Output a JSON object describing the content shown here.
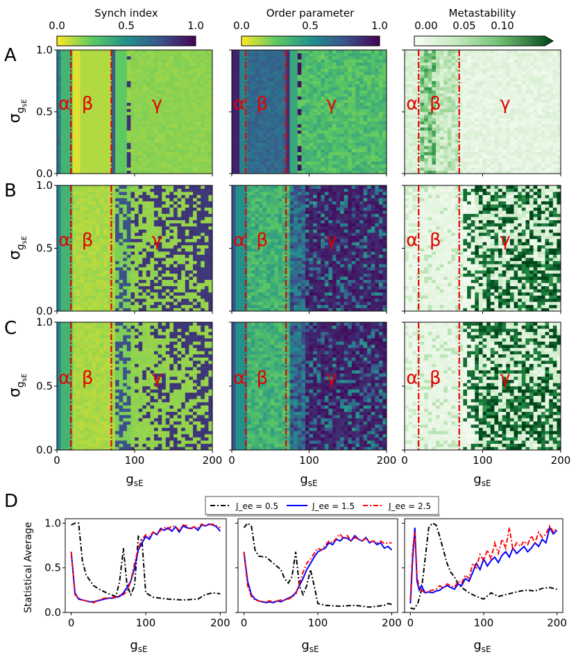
{
  "chart_data": {
    "type": "heatmap",
    "rows": [
      {
        "label": "A"
      },
      {
        "label": "B"
      },
      {
        "label": "C"
      }
    ],
    "columns": [
      {
        "title": "Synch index",
        "colormap": "viridis_r",
        "colorbar_ticks": [
          "0.0",
          "0.5",
          "1.0"
        ],
        "vmin": 0,
        "vmax": 1
      },
      {
        "title": "Order parameter",
        "colormap": "viridis_r",
        "colorbar_ticks": [
          "0.0",
          "0.5",
          "1.0"
        ],
        "vmin": 0,
        "vmax": 1
      },
      {
        "title": "Metastability",
        "colormap": "Greens",
        "colorbar_ticks": [
          "0.00",
          "0.05",
          "0.10"
        ],
        "vmin": 0,
        "vmax": 0.14,
        "colorbar_extend": "max"
      }
    ],
    "xlabel": "g_sE",
    "ylabel": "σ_g_sE",
    "xlim": [
      0,
      200
    ],
    "ylim": [
      0,
      1
    ],
    "x_ticks": [
      "0",
      "100",
      "200"
    ],
    "y_ticks": [
      "0.0",
      "0.5",
      "1.0"
    ],
    "boundaries": [
      18,
      70
    ],
    "band_labels": [
      "α",
      "β",
      "γ"
    ],
    "grid_cols": 40,
    "grid_rows": 40
  },
  "line_chart_data": {
    "type": "line",
    "row_label": "D",
    "ylabel": "Statistical Average",
    "xlabel": "g_sE",
    "xlim": [
      -8,
      208
    ],
    "ylim": [
      0,
      1.05
    ],
    "x_ticks": [
      "0",
      "100",
      "200"
    ],
    "y_ticks": [
      "0.0",
      "0.5",
      "1.0"
    ],
    "legend": [
      {
        "label": "J_ee = 0.5",
        "color": "#000000",
        "style": "dashdot"
      },
      {
        "label": "J_ee = 1.5",
        "color": "#0000ff",
        "style": "solid"
      },
      {
        "label": "J_ee = 2.5",
        "color": "#ff0000",
        "style": "dashdot"
      }
    ],
    "panels": [
      {
        "name": "synch",
        "series": [
          {
            "name": "J_ee = 0.5",
            "x": [
              0,
              5,
              10,
              15,
              20,
              30,
              40,
              50,
              60,
              65,
              70,
              75,
              80,
              85,
              90,
              95,
              100,
              110,
              120,
              130,
              150,
              170,
              180,
              190,
              200
            ],
            "y": [
              0.98,
              1.0,
              1.0,
              0.58,
              0.42,
              0.3,
              0.25,
              0.21,
              0.18,
              0.35,
              0.72,
              0.3,
              0.2,
              0.3,
              0.85,
              0.8,
              0.22,
              0.17,
              0.16,
              0.15,
              0.14,
              0.15,
              0.2,
              0.22,
              0.21
            ]
          },
          {
            "name": "J_ee = 1.5",
            "x": [
              0,
              5,
              10,
              15,
              20,
              25,
              30,
              35,
              40,
              45,
              50,
              55,
              60,
              65,
              70,
              75,
              80,
              85,
              90,
              95,
              100,
              105,
              110,
              115,
              120,
              125,
              130,
              135,
              140,
              145,
              150,
              155,
              160,
              165,
              170,
              175,
              180,
              185,
              190,
              195,
              200
            ],
            "y": [
              0.68,
              0.22,
              0.15,
              0.14,
              0.13,
              0.12,
              0.12,
              0.13,
              0.14,
              0.15,
              0.16,
              0.16,
              0.17,
              0.18,
              0.22,
              0.28,
              0.35,
              0.5,
              0.7,
              0.78,
              0.85,
              0.82,
              0.9,
              0.87,
              0.94,
              0.92,
              0.95,
              0.91,
              0.96,
              0.9,
              0.97,
              0.95,
              0.94,
              0.96,
              0.92,
              0.98,
              0.97,
              0.99,
              0.98,
              0.96,
              0.91
            ]
          },
          {
            "name": "J_ee = 2.5",
            "x": [
              0,
              5,
              10,
              15,
              20,
              25,
              30,
              35,
              40,
              45,
              50,
              55,
              60,
              65,
              70,
              75,
              80,
              85,
              90,
              95,
              100,
              105,
              110,
              115,
              120,
              125,
              130,
              135,
              140,
              145,
              150,
              155,
              160,
              165,
              170,
              175,
              180,
              185,
              190,
              195,
              200
            ],
            "y": [
              0.68,
              0.2,
              0.16,
              0.14,
              0.13,
              0.12,
              0.11,
              0.13,
              0.15,
              0.16,
              0.16,
              0.17,
              0.17,
              0.19,
              0.2,
              0.24,
              0.35,
              0.55,
              0.72,
              0.82,
              0.87,
              0.85,
              0.9,
              0.88,
              0.92,
              0.95,
              0.93,
              0.97,
              0.96,
              0.92,
              0.98,
              0.97,
              0.93,
              0.96,
              0.95,
              0.99,
              0.97,
              0.98,
              0.99,
              0.97,
              0.95
            ]
          }
        ]
      },
      {
        "name": "order",
        "series": [
          {
            "name": "J_ee = 0.5",
            "x": [
              0,
              5,
              10,
              15,
              20,
              30,
              40,
              50,
              55,
              60,
              65,
              70,
              75,
              80,
              85,
              90,
              95,
              100,
              110,
              130,
              150,
              170,
              190,
              195,
              200
            ],
            "y": [
              0.95,
              1.0,
              0.97,
              0.7,
              0.63,
              0.62,
              0.55,
              0.48,
              0.38,
              0.33,
              0.4,
              0.68,
              0.3,
              0.2,
              0.3,
              0.48,
              0.3,
              0.1,
              0.08,
              0.07,
              0.08,
              0.06,
              0.08,
              0.1,
              0.09
            ]
          },
          {
            "name": "J_ee = 1.5",
            "x": [
              0,
              5,
              10,
              15,
              20,
              25,
              30,
              35,
              40,
              45,
              50,
              55,
              60,
              65,
              70,
              75,
              80,
              85,
              90,
              95,
              100,
              105,
              110,
              115,
              120,
              125,
              130,
              135,
              140,
              145,
              150,
              155,
              160,
              165,
              170,
              175,
              180,
              185,
              190,
              195,
              200
            ],
            "y": [
              0.68,
              0.35,
              0.2,
              0.15,
              0.13,
              0.12,
              0.11,
              0.12,
              0.11,
              0.13,
              0.12,
              0.14,
              0.16,
              0.18,
              0.22,
              0.3,
              0.38,
              0.48,
              0.55,
              0.62,
              0.68,
              0.7,
              0.72,
              0.78,
              0.76,
              0.82,
              0.8,
              0.84,
              0.83,
              0.8,
              0.86,
              0.82,
              0.8,
              0.84,
              0.78,
              0.8,
              0.76,
              0.78,
              0.72,
              0.74,
              0.7
            ]
          },
          {
            "name": "J_ee = 2.5",
            "x": [
              0,
              5,
              10,
              15,
              20,
              25,
              30,
              35,
              40,
              45,
              50,
              55,
              60,
              65,
              70,
              75,
              80,
              85,
              90,
              95,
              100,
              105,
              110,
              115,
              120,
              125,
              130,
              135,
              140,
              145,
              150,
              155,
              160,
              165,
              170,
              175,
              180,
              185,
              190,
              195,
              200
            ],
            "y": [
              0.68,
              0.3,
              0.18,
              0.14,
              0.13,
              0.12,
              0.12,
              0.13,
              0.12,
              0.13,
              0.14,
              0.14,
              0.15,
              0.17,
              0.2,
              0.32,
              0.45,
              0.55,
              0.6,
              0.66,
              0.72,
              0.7,
              0.75,
              0.8,
              0.78,
              0.83,
              0.88,
              0.82,
              0.86,
              0.8,
              0.84,
              0.82,
              0.8,
              0.83,
              0.79,
              0.8,
              0.78,
              0.8,
              0.77,
              0.78,
              0.78
            ]
          }
        ]
      },
      {
        "name": "meta",
        "series": [
          {
            "name": "J_ee = 0.5",
            "x": [
              0,
              5,
              10,
              15,
              20,
              25,
              30,
              35,
              40,
              45,
              50,
              55,
              60,
              65,
              70,
              75,
              80,
              90,
              100,
              110,
              120,
              130,
              140,
              150,
              160,
              170,
              180,
              190,
              200
            ],
            "y": [
              0.05,
              0.04,
              0.1,
              0.25,
              0.6,
              0.95,
              1.0,
              0.98,
              0.85,
              0.7,
              0.55,
              0.45,
              0.4,
              0.32,
              0.28,
              0.25,
              0.22,
              0.18,
              0.15,
              0.22,
              0.18,
              0.2,
              0.22,
              0.24,
              0.25,
              0.24,
              0.27,
              0.28,
              0.26
            ]
          },
          {
            "name": "J_ee = 1.5",
            "x": [
              0,
              3,
              6,
              9,
              12,
              15,
              20,
              25,
              30,
              35,
              40,
              45,
              50,
              55,
              60,
              65,
              70,
              75,
              80,
              85,
              90,
              95,
              100,
              105,
              110,
              115,
              120,
              125,
              130,
              135,
              140,
              145,
              150,
              155,
              160,
              165,
              170,
              175,
              180,
              185,
              190,
              195,
              200
            ],
            "y": [
              0.1,
              0.6,
              0.95,
              0.35,
              0.25,
              0.3,
              0.22,
              0.23,
              0.22,
              0.24,
              0.25,
              0.28,
              0.3,
              0.28,
              0.26,
              0.32,
              0.3,
              0.38,
              0.35,
              0.45,
              0.55,
              0.48,
              0.6,
              0.52,
              0.58,
              0.62,
              0.56,
              0.64,
              0.68,
              0.62,
              0.72,
              0.66,
              0.7,
              0.74,
              0.68,
              0.72,
              0.78,
              0.74,
              0.82,
              0.78,
              0.95,
              0.88,
              0.92
            ]
          },
          {
            "name": "J_ee = 2.5",
            "x": [
              0,
              3,
              6,
              9,
              12,
              15,
              20,
              25,
              30,
              35,
              40,
              45,
              50,
              55,
              60,
              65,
              70,
              75,
              80,
              85,
              90,
              95,
              100,
              105,
              110,
              115,
              120,
              125,
              130,
              135,
              140,
              145,
              150,
              155,
              160,
              165,
              170,
              175,
              180,
              185,
              190,
              195,
              200
            ],
            "y": [
              0.15,
              0.7,
              0.9,
              0.4,
              0.28,
              0.25,
              0.22,
              0.24,
              0.25,
              0.26,
              0.3,
              0.27,
              0.32,
              0.3,
              0.28,
              0.35,
              0.33,
              0.42,
              0.38,
              0.55,
              0.5,
              0.65,
              0.58,
              0.7,
              0.6,
              0.78,
              0.66,
              0.82,
              0.72,
              0.95,
              0.7,
              0.78,
              0.74,
              0.8,
              0.76,
              0.86,
              0.78,
              0.9,
              0.84,
              0.88,
              0.97,
              0.9,
              0.95
            ]
          }
        ]
      }
    ]
  }
}
